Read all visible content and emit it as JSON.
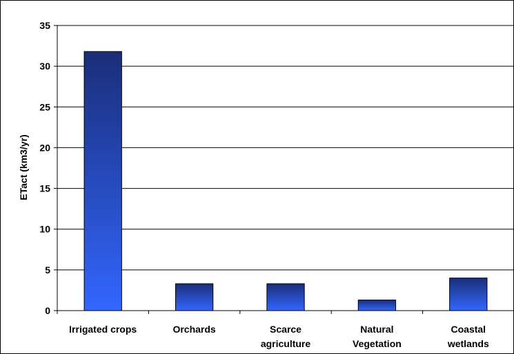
{
  "chart_data": {
    "type": "bar",
    "title": "",
    "xlabel": "",
    "ylabel": "ETact (km3/yr)",
    "categories": [
      [
        "Irrigated crops"
      ],
      [
        "Orchards"
      ],
      [
        "Scarce",
        "agriculture"
      ],
      [
        "Natural",
        "Vegetation"
      ],
      [
        "Coastal",
        "wetlands"
      ]
    ],
    "values": [
      31.8,
      3.3,
      3.3,
      1.3,
      4.0
    ],
    "ylim": [
      0,
      35
    ],
    "yticks": [
      0,
      5,
      10,
      15,
      20,
      25,
      30,
      35
    ],
    "grid": true,
    "legend": "none",
    "colors": {
      "bar_top": "#1a2e78",
      "bar_bottom": "#3366ff",
      "bar_stroke": "#000000",
      "grid": "#000000"
    }
  }
}
